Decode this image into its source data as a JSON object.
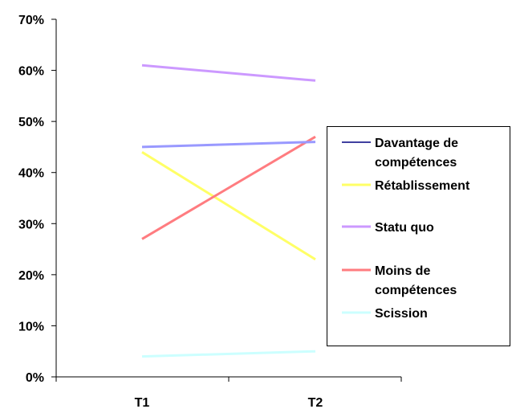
{
  "chart_data": {
    "type": "line",
    "title": "",
    "xlabel": "",
    "ylabel": "",
    "categories": [
      "T1",
      "T2"
    ],
    "ylim": [
      0,
      70
    ],
    "yticks": [
      "0%",
      "10%",
      "20%",
      "30%",
      "40%",
      "50%",
      "60%",
      "70%"
    ],
    "grid": false,
    "legend_position": "right",
    "series": [
      {
        "name": "Davantage de compétences",
        "legend_lines": [
          "Davantage de",
          "compétences"
        ],
        "values": [
          45,
          46
        ],
        "color": "#9999ff",
        "legend_color": "#000080"
      },
      {
        "name": "Rétablissement",
        "legend_lines": [
          "Rétablissement"
        ],
        "values": [
          44,
          23
        ],
        "color": "#ffff66",
        "legend_color": "#ffff66"
      },
      {
        "name": "Statu quo",
        "legend_lines": [
          "Statu quo"
        ],
        "values": [
          61,
          58
        ],
        "color": "#cc99ff",
        "legend_color": "#cc99ff"
      },
      {
        "name": "Moins de compétences",
        "legend_lines": [
          "Moins de",
          "compétences"
        ],
        "values": [
          27,
          47
        ],
        "color": "#ff7c80",
        "legend_color": "#ff7c80"
      },
      {
        "name": "Scission",
        "legend_lines": [
          "Scission"
        ],
        "values": [
          4,
          5
        ],
        "color": "#ccffff",
        "legend_color": "#ccffff"
      }
    ]
  }
}
